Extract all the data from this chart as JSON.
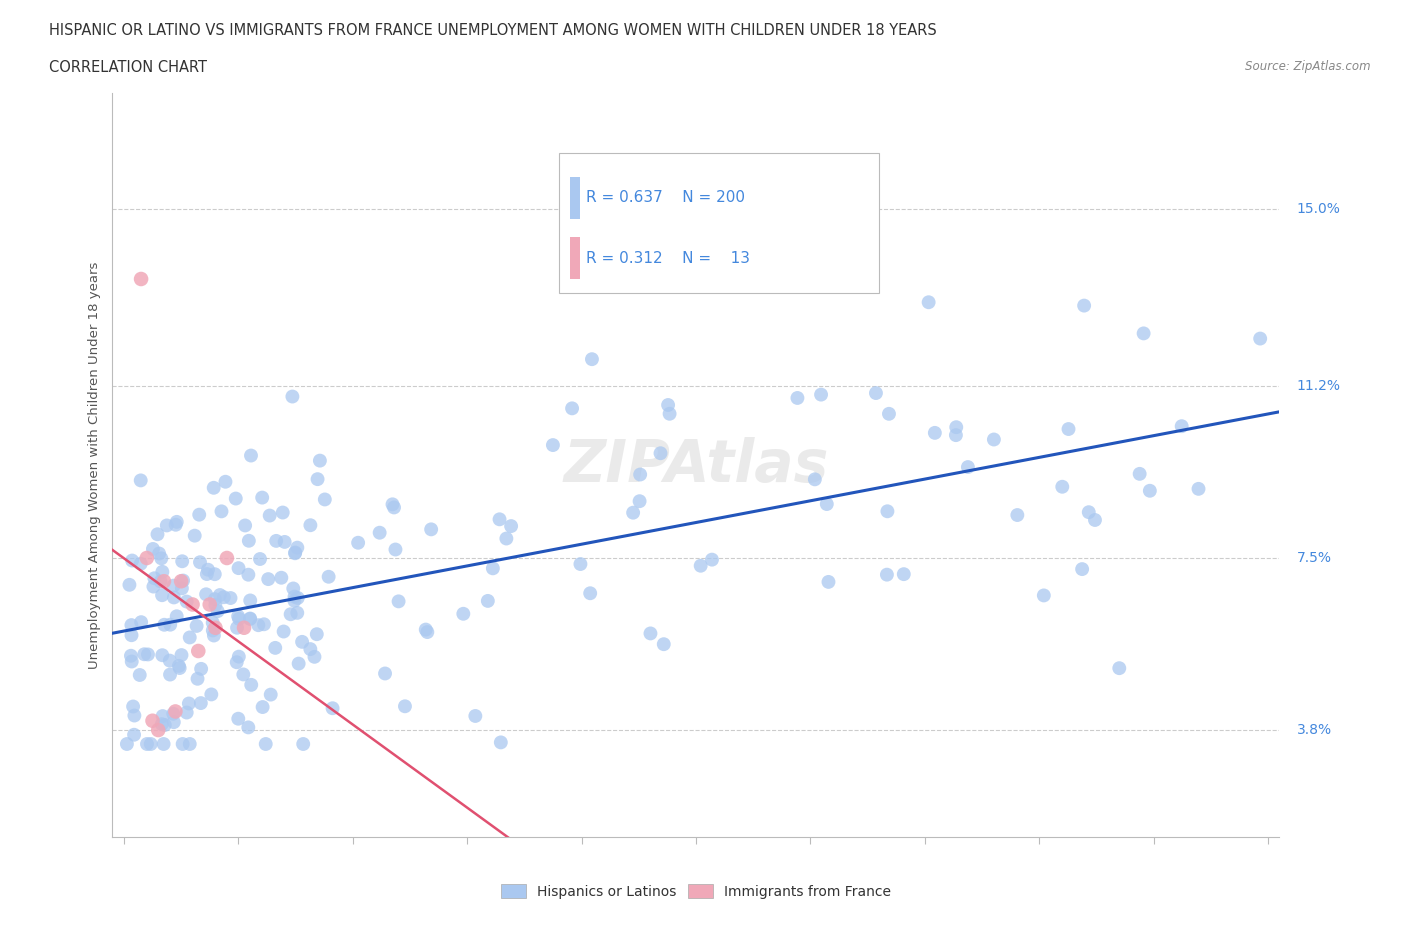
{
  "title": "HISPANIC OR LATINO VS IMMIGRANTS FROM FRANCE UNEMPLOYMENT AMONG WOMEN WITH CHILDREN UNDER 18 YEARS",
  "subtitle": "CORRELATION CHART",
  "source": "Source: ZipAtlas.com",
  "ylabel": "Unemployment Among Women with Children Under 18 years",
  "xlim": [
    -1,
    101
  ],
  "ylim": [
    1.5,
    17.5
  ],
  "ytick_vals": [
    3.8,
    7.5,
    11.2,
    15.0
  ],
  "ytick_labels": [
    "3.8%",
    "7.5%",
    "11.2%",
    "15.0%"
  ],
  "blue_R": 0.637,
  "blue_N": 200,
  "pink_R": 0.312,
  "pink_N": 13,
  "blue_color": "#aac8f0",
  "pink_color": "#f0a8b8",
  "blue_line_color": "#2255bb",
  "pink_line_color": "#e05070",
  "legend_blue_label": "Hispanics or Latinos",
  "legend_pink_label": "Immigrants from France",
  "watermark": "ZIPAtlas",
  "background_color": "#ffffff",
  "grid_color": "#cccccc",
  "title_color": "#333333",
  "axis_label_color": "#4488dd",
  "tick_color": "#888888"
}
